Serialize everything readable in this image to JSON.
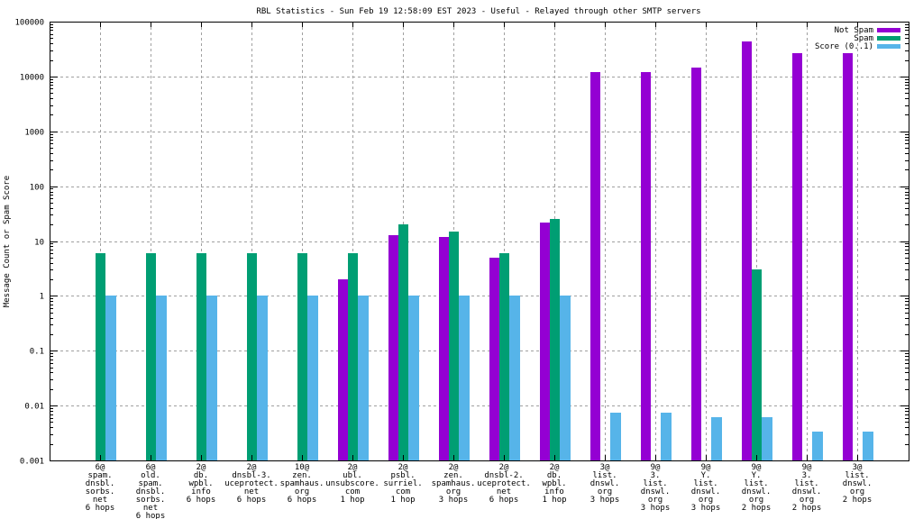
{
  "chart_data": {
    "type": "bar",
    "title": "RBL Statistics - Sun Feb 19 12:58:09 EST 2023 - Useful - Relayed through other SMTP servers",
    "xlabel": "",
    "ylabel": "Message Count or Spam Score",
    "yscale": "log",
    "ylim": [
      0.001,
      100000
    ],
    "yticks": [
      "0.001",
      "0.01",
      "0.1",
      "1",
      "10",
      "100",
      "1000",
      "10000",
      "100000"
    ],
    "ytick_values": [
      0.001,
      0.01,
      0.1,
      1,
      10,
      100,
      1000,
      10000,
      100000
    ],
    "grid": true,
    "legend_position": "top-right",
    "categories": [
      [
        "6@",
        "spam.",
        "dnsbl.",
        "sorbs.",
        "net",
        "6 hops"
      ],
      [
        "6@",
        "old.",
        "spam.",
        "dnsbl.",
        "sorbs.",
        "net",
        "6 hops"
      ],
      [
        "2@",
        "db.",
        "wpbl.",
        "info",
        "6 hops"
      ],
      [
        "2@",
        "dnsbl-3.",
        "uceprotect.",
        "net",
        "6 hops"
      ],
      [
        "10@",
        "zen.",
        "spamhaus.",
        "org",
        "6 hops"
      ],
      [
        "2@",
        "ubl.",
        "unsubscore.",
        "com",
        "1 hop"
      ],
      [
        "2@",
        "psbl.",
        "surriel.",
        "com",
        "1 hop"
      ],
      [
        "2@",
        "zen.",
        "spamhaus.",
        "org",
        "3 hops"
      ],
      [
        "2@",
        "dnsbl-2.",
        "uceprotect.",
        "net",
        "6 hops"
      ],
      [
        "2@",
        "db.",
        "wpbl.",
        "info",
        "1 hop"
      ],
      [
        "3@",
        "list.",
        "dnswl.",
        "org",
        "3 hops"
      ],
      [
        "9@",
        "3.",
        "list.",
        "dnswl.",
        "org",
        "3 hops"
      ],
      [
        "9@",
        "Y.",
        "list.",
        "dnswl.",
        "org",
        "3 hops"
      ],
      [
        "9@",
        "Y.",
        "list.",
        "dnswl.",
        "org",
        "2 hops"
      ],
      [
        "9@",
        "3.",
        "list.",
        "dnswl.",
        "org",
        "2 hops"
      ],
      [
        "3@",
        "list.",
        "dnswl.",
        "org",
        "2 hops"
      ]
    ],
    "series": [
      {
        "name": "Not Spam",
        "color": "#9400d3",
        "values": [
          0,
          0,
          0,
          0,
          0,
          2,
          13,
          12,
          5,
          22,
          12200,
          12200,
          14400,
          43000,
          27000,
          27000
        ]
      },
      {
        "name": "Spam",
        "color": "#009e73",
        "values": [
          6,
          6,
          6,
          6,
          6,
          6,
          20,
          15,
          6,
          25,
          0,
          0,
          0,
          3,
          0,
          0
        ]
      },
      {
        "name": "Score (0..1)",
        "color": "#56b4e9",
        "values": [
          1,
          1,
          1,
          1,
          1,
          1,
          1,
          1,
          1,
          1,
          0.0075,
          0.0075,
          0.0062,
          0.0062,
          0.0033,
          0.0033
        ]
      }
    ]
  }
}
